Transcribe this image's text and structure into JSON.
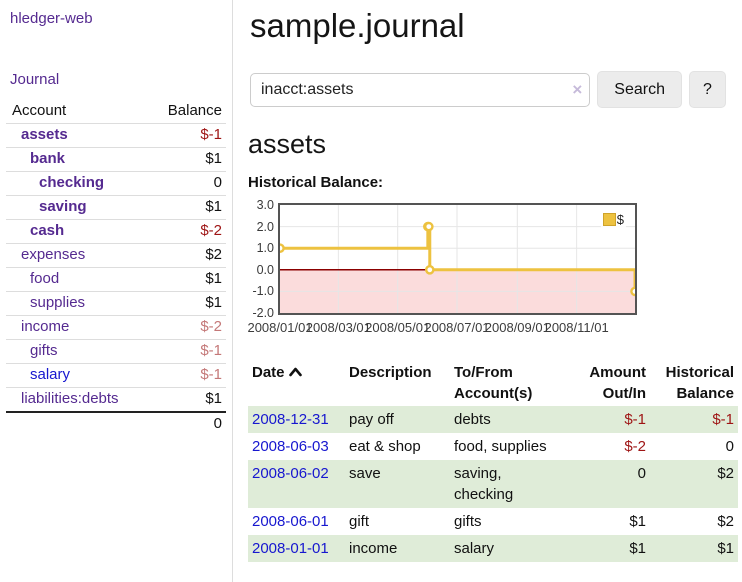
{
  "colors": {
    "link_purple": "#552a90",
    "link_blue": "#1717cf",
    "negative_strong": "#9e1414",
    "negative_soft": "#c47878",
    "row_stripe_green": "#dfecd8",
    "series_gold": "#edc240",
    "chart_negative_region": "#fbdcdc",
    "zero_line": "#8b0000"
  },
  "sidebar": {
    "app_title": "hledger-web",
    "journal_label": "Journal",
    "accounts_table": {
      "account_header": "Account",
      "balance_header": "Balance",
      "rows": [
        {
          "name": "assets",
          "indent": 1,
          "bold": true,
          "balance": "$-1",
          "balance_style": "neg-strong",
          "link_style": "visited"
        },
        {
          "name": "bank",
          "indent": 2,
          "bold": true,
          "balance": "$1",
          "balance_style": "pos",
          "link_style": "visited"
        },
        {
          "name": "checking",
          "indent": 3,
          "bold": true,
          "balance": "0",
          "balance_style": "pos",
          "link_style": "visited"
        },
        {
          "name": "saving",
          "indent": 3,
          "bold": true,
          "balance": "$1",
          "balance_style": "pos",
          "link_style": "visited"
        },
        {
          "name": "cash",
          "indent": 2,
          "bold": true,
          "balance": "$-2",
          "balance_style": "neg-strong",
          "link_style": "visited"
        },
        {
          "name": "expenses",
          "indent": 1,
          "bold": false,
          "balance": "$2",
          "balance_style": "pos",
          "link_style": "visited"
        },
        {
          "name": "food",
          "indent": 2,
          "bold": false,
          "balance": "$1",
          "balance_style": "pos",
          "link_style": "visited"
        },
        {
          "name": "supplies",
          "indent": 2,
          "bold": false,
          "balance": "$1",
          "balance_style": "pos",
          "link_style": "visited"
        },
        {
          "name": "income",
          "indent": 1,
          "bold": false,
          "balance": "$-2",
          "balance_style": "neg-soft",
          "link_style": "visited"
        },
        {
          "name": "gifts",
          "indent": 2,
          "bold": false,
          "balance": "$-1",
          "balance_style": "neg-soft",
          "link_style": "visited"
        },
        {
          "name": "salary",
          "indent": 2,
          "bold": false,
          "balance": "$-1",
          "balance_style": "neg-soft",
          "link_style": "unvisited"
        },
        {
          "name": "liabilities:debts",
          "indent": 1,
          "bold": false,
          "balance": "$1",
          "balance_style": "pos",
          "link_style": "visited"
        }
      ],
      "total": "0"
    }
  },
  "main": {
    "title": "sample.journal",
    "search": {
      "value": "inacct:assets",
      "clear_icon": "×",
      "button_label": "Search",
      "help_label": "?"
    },
    "account_heading": "assets",
    "chart_label": "Historical Balance:"
  },
  "chart_data": {
    "type": "line",
    "title": "Historical Balance",
    "step": true,
    "legend": [
      {
        "name": "$",
        "color": "#edc240"
      }
    ],
    "x_domain_days": [
      0,
      365
    ],
    "x_ticks": [
      {
        "label": "2008/01/01",
        "day": 0
      },
      {
        "label": "2008/03/01",
        "day": 60
      },
      {
        "label": "2008/05/01",
        "day": 121
      },
      {
        "label": "2008/07/01",
        "day": 182
      },
      {
        "label": "2008/09/01",
        "day": 244
      },
      {
        "label": "2008/11/01",
        "day": 305
      }
    ],
    "y_ticks": [
      "3.0",
      "2.0",
      "1.0",
      "0.0",
      "-1.0",
      "-2.0"
    ],
    "ylim": [
      -2,
      3
    ],
    "series": [
      {
        "name": "$",
        "color": "#edc240",
        "points": [
          {
            "date": "2008-01-01",
            "day": 0,
            "y": 1
          },
          {
            "date": "2008-06-01",
            "day": 152,
            "y": 2
          },
          {
            "date": "2008-06-02",
            "day": 153,
            "y": 2
          },
          {
            "date": "2008-06-03",
            "day": 154,
            "y": 0
          },
          {
            "date": "2008-12-31",
            "day": 365,
            "y": -1
          }
        ]
      }
    ],
    "negative_region": true,
    "grid": true,
    "legend_position": "top-right"
  },
  "register_table": {
    "headers": {
      "date": "Date",
      "description": "Description",
      "accounts": "To/From Account(s)",
      "amount": "Amount Out/In",
      "balance": "Historical Balance"
    },
    "rows": [
      {
        "date": "2008-12-31",
        "description": "pay off",
        "accounts": "debts",
        "amount": "$-1",
        "amount_neg": true,
        "balance": "$-1",
        "balance_neg": true,
        "shaded": true
      },
      {
        "date": "2008-06-03",
        "description": "eat & shop",
        "accounts": "food, supplies",
        "amount": "$-2",
        "amount_neg": true,
        "balance": "0",
        "balance_neg": false,
        "shaded": false
      },
      {
        "date": "2008-06-02",
        "description": "save",
        "accounts": "saving, checking",
        "amount": "0",
        "amount_neg": false,
        "balance": "$2",
        "balance_neg": false,
        "shaded": true
      },
      {
        "date": "2008-06-01",
        "description": "gift",
        "accounts": "gifts",
        "amount": "$1",
        "amount_neg": false,
        "balance": "$2",
        "balance_neg": false,
        "shaded": false
      },
      {
        "date": "2008-01-01",
        "description": "income",
        "accounts": "salary",
        "amount": "$1",
        "amount_neg": false,
        "balance": "$1",
        "balance_neg": false,
        "shaded": true
      }
    ]
  }
}
